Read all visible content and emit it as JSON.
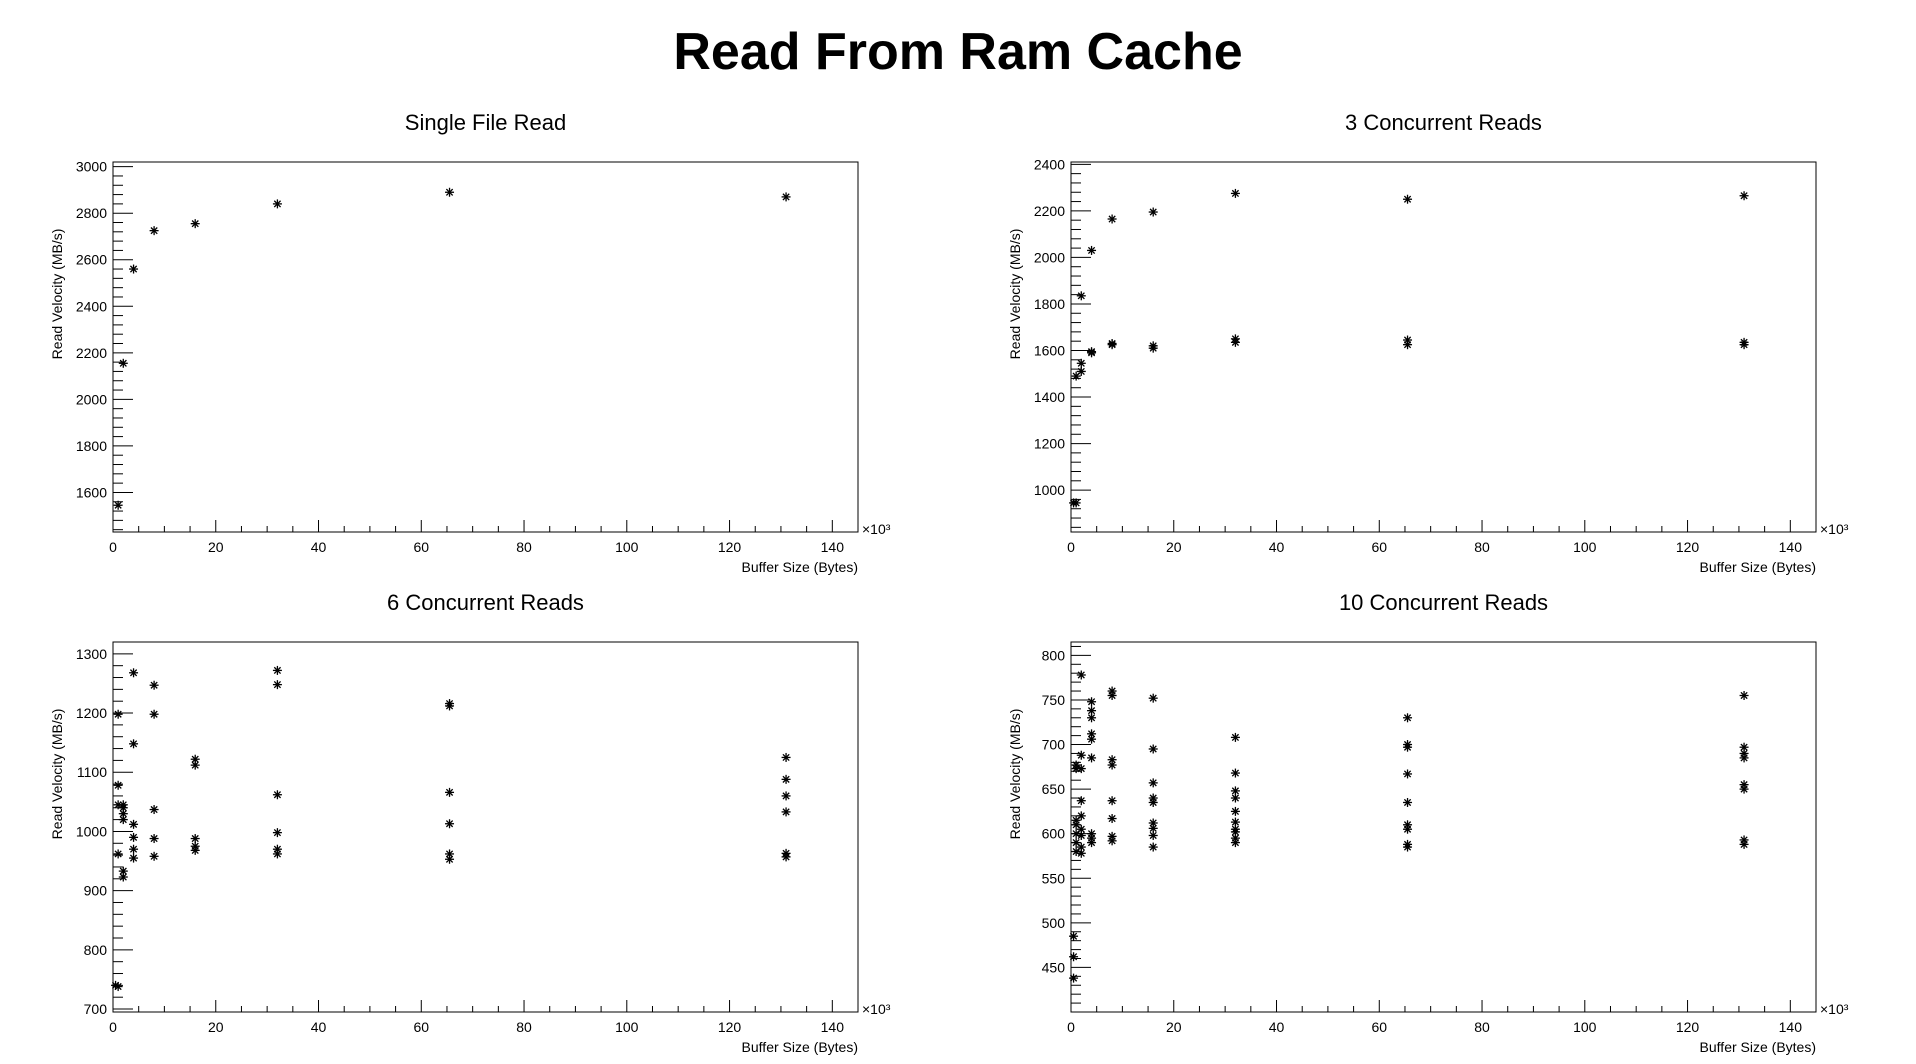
{
  "title": "Read From Ram Cache",
  "chart_data": [
    {
      "type": "scatter",
      "title": "Single File Read",
      "xlabel": "Buffer Size (Bytes)",
      "ylabel": "Read Velocity (MB/s)",
      "x_multiplier_label": "×10³",
      "xlim": [
        0,
        145
      ],
      "ylim": [
        1430,
        3020
      ],
      "xticks": [
        0,
        20,
        40,
        60,
        80,
        100,
        120,
        140
      ],
      "yticks": [
        1600,
        1800,
        2000,
        2200,
        2400,
        2600,
        2800,
        3000
      ],
      "grid": false,
      "x": [
        1,
        2,
        4,
        8,
        16,
        32,
        65.5,
        131
      ],
      "y": [
        1545,
        2155,
        2560,
        2725,
        2755,
        2840,
        2890,
        2870
      ]
    },
    {
      "type": "scatter",
      "title": "3 Concurrent Reads",
      "xlabel": "Buffer Size (Bytes)",
      "ylabel": "Read Velocity (MB/s)",
      "x_multiplier_label": "×10³",
      "xlim": [
        0,
        145
      ],
      "ylim": [
        820,
        2410
      ],
      "xticks": [
        0,
        20,
        40,
        60,
        80,
        100,
        120,
        140
      ],
      "yticks": [
        1000,
        1200,
        1400,
        1600,
        1800,
        2000,
        2200,
        2400
      ],
      "grid": false,
      "x": [
        0.5,
        1,
        1,
        2,
        2,
        2,
        4,
        4,
        4,
        8,
        8,
        8,
        16,
        16,
        16,
        32,
        32,
        32,
        65.5,
        65.5,
        65.5,
        131,
        131,
        131
      ],
      "y": [
        945,
        945,
        1490,
        1510,
        1545,
        1835,
        1590,
        1595,
        2030,
        1625,
        1630,
        2165,
        1610,
        1620,
        2195,
        1635,
        1650,
        2275,
        1625,
        1645,
        2250,
        1625,
        1635,
        2265
      ]
    },
    {
      "type": "scatter",
      "title": "6 Concurrent Reads",
      "xlabel": "Buffer Size (Bytes)",
      "ylabel": "Read Velocity (MB/s)",
      "x_multiplier_label": "×10³",
      "xlim": [
        0,
        145
      ],
      "ylim": [
        695,
        1320
      ],
      "xticks": [
        0,
        20,
        40,
        60,
        80,
        100,
        120,
        140
      ],
      "yticks": [
        700,
        800,
        900,
        1000,
        1100,
        1200,
        1300
      ],
      "grid": false,
      "x": [
        0.5,
        1,
        1,
        1,
        1,
        1,
        2,
        2,
        2,
        2,
        2,
        2,
        4,
        4,
        4,
        4,
        4,
        4,
        8,
        8,
        8,
        8,
        8,
        16,
        16,
        16,
        16,
        16,
        32,
        32,
        32,
        32,
        32,
        32,
        65.5,
        65.5,
        65.5,
        65.5,
        65.5,
        65.5,
        131,
        131,
        131,
        131,
        131,
        131
      ],
      "y": [
        740,
        738,
        962,
        1045,
        1078,
        1198,
        923,
        933,
        1020,
        1030,
        1040,
        1045,
        955,
        970,
        990,
        1012,
        1148,
        1268,
        958,
        988,
        1037,
        1198,
        1247,
        968,
        975,
        988,
        1112,
        1122,
        962,
        970,
        998,
        1062,
        1248,
        1272,
        953,
        962,
        1013,
        1066,
        1212,
        1216,
        957,
        963,
        1033,
        1060,
        1088,
        1125
      ]
    },
    {
      "type": "scatter",
      "title": "10 Concurrent Reads",
      "xlabel": "Buffer Size (Bytes)",
      "ylabel": "Read Velocity (MB/s)",
      "x_multiplier_label": "×10³",
      "xlim": [
        0,
        145
      ],
      "ylim": [
        400,
        815
      ],
      "xticks": [
        0,
        20,
        40,
        60,
        80,
        100,
        120,
        140
      ],
      "yticks": [
        450,
        500,
        550,
        600,
        650,
        700,
        750,
        800
      ],
      "grid": false,
      "x": [
        0.5,
        0.5,
        0.5,
        1,
        1,
        1,
        1,
        1,
        1,
        1,
        2,
        2,
        2,
        2,
        2,
        2,
        2,
        2,
        2,
        4,
        4,
        4,
        4,
        4,
        4,
        4,
        4,
        4,
        8,
        8,
        8,
        8,
        8,
        8,
        8,
        8,
        16,
        16,
        16,
        16,
        16,
        16,
        16,
        16,
        16,
        32,
        32,
        32,
        32,
        32,
        32,
        32,
        32,
        32,
        32,
        65.5,
        65.5,
        65.5,
        65.5,
        65.5,
        65.5,
        65.5,
        65.5,
        65.5,
        131,
        131,
        131,
        131,
        131,
        131,
        131,
        131
      ],
      "y": [
        438,
        462,
        485,
        580,
        590,
        600,
        610,
        615,
        673,
        677,
        578,
        585,
        598,
        605,
        620,
        637,
        673,
        688,
        778,
        590,
        595,
        600,
        685,
        706,
        712,
        730,
        738,
        748,
        592,
        597,
        617,
        637,
        677,
        683,
        755,
        760,
        585,
        598,
        606,
        612,
        635,
        640,
        657,
        695,
        752,
        590,
        595,
        602,
        605,
        613,
        625,
        640,
        648,
        668,
        708,
        585,
        588,
        605,
        610,
        635,
        667,
        697,
        700,
        730,
        588,
        593,
        650,
        655,
        685,
        690,
        697,
        755
      ]
    }
  ]
}
